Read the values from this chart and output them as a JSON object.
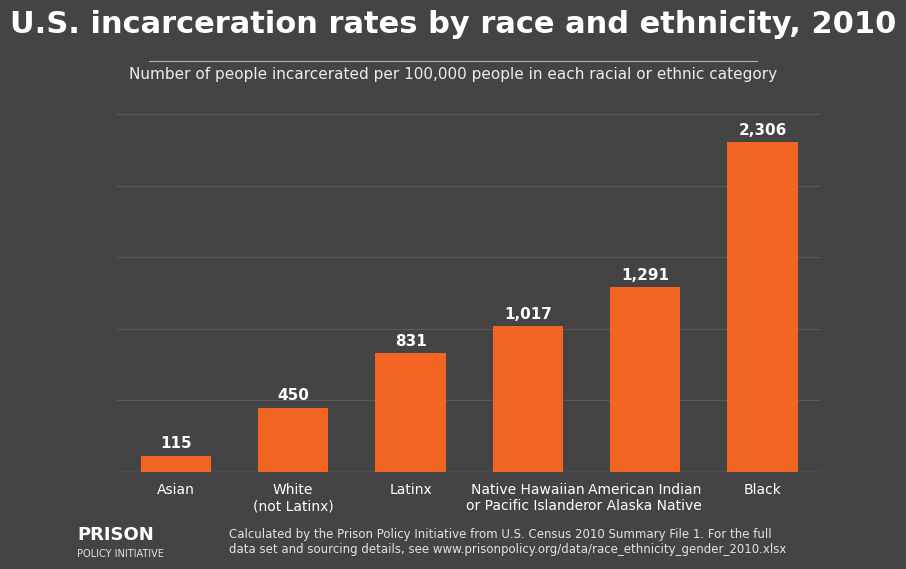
{
  "title": "U.S. incarceration rates by race and ethnicity, 2010",
  "subtitle": "Number of people incarcerated per 100,000 people in each racial or ethnic category",
  "categories": [
    "Asian",
    "White\n(not Latinx)",
    "Latinx",
    "Native Hawaiian\nor Pacific Islander",
    "American Indian\nor Alaska Native",
    "Black"
  ],
  "values": [
    115,
    450,
    831,
    1017,
    1291,
    2306
  ],
  "bar_color": "#f26522",
  "background_color": "#444444",
  "text_color": "#ffffff",
  "grid_color": "#5a5a5a",
  "ylim": [
    0,
    2600
  ],
  "bar_label_fontsize": 11,
  "title_fontsize": 22,
  "subtitle_fontsize": 11,
  "tick_fontsize": 10,
  "footer_text": "Calculated by the Prison Policy Initiative from U.S. Census 2010 Summary File 1. For the full\ndata set and sourcing details, see www.prisonpolicy.org/data/race_ethnicity_gender_2010.xlsx",
  "logo_text_line1": "PRISON",
  "logo_text_line2": "POLICY INITIATIVE"
}
